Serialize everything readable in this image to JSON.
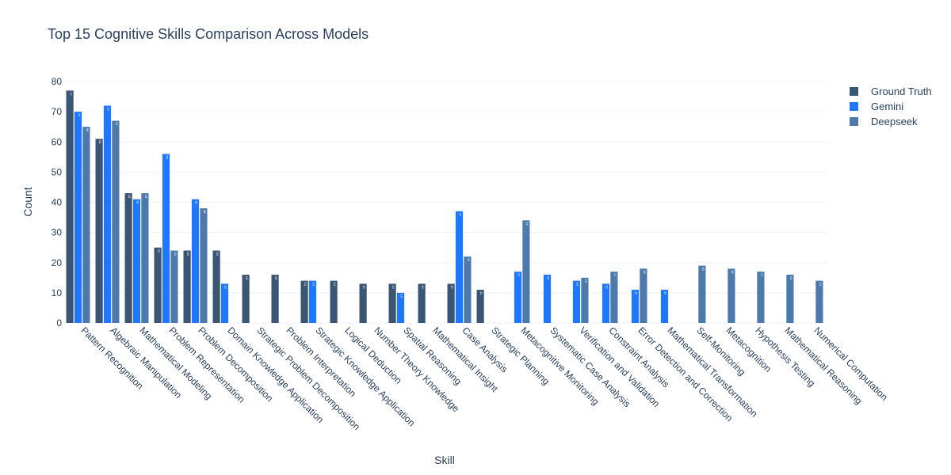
{
  "chart_data": {
    "type": "bar",
    "title": "Top 15 Cognitive Skills Comparison Across Models",
    "xlabel": "Skill",
    "ylabel": "Count",
    "ylim": [
      0,
      80
    ],
    "yticks": [
      0,
      10,
      20,
      30,
      40,
      50,
      60,
      70,
      80
    ],
    "grid": true,
    "legend_position": "top-right",
    "categories": [
      "Pattern Recognition",
      "Algebraic Manipulation",
      "Mathematical Modeling",
      "Problem Representation",
      "Problem Decomposition",
      "Domain Knowledge Application",
      "Strategic Problem Decomposition",
      "Problem Interpretation",
      "Strategic Knowledge Application",
      "Logical Deduction",
      "Number Theory Knowledge",
      "Spatial Reasoning",
      "Mathematical Insight",
      "Case Analysis",
      "Strategic Planning",
      "Metacognitive Monitoring",
      "Systematic Case Analysis",
      "Verification and Validation",
      "Constraint Analysis",
      "Error Detection and Correction",
      "Mathematical Transformation",
      "Self-Monitoring",
      "Metacognition",
      "Hypothesis Testing",
      "Mathematical Reasoning",
      "Numerical Computation"
    ],
    "series": [
      {
        "name": "Ground Truth",
        "color": "#3b5675",
        "values": [
          77,
          61,
          43,
          25,
          24,
          24,
          16,
          16,
          14,
          14,
          13,
          13,
          13,
          13,
          11,
          null,
          null,
          null,
          null,
          null,
          null,
          null,
          null,
          null,
          null,
          null
        ]
      },
      {
        "name": "Gemini",
        "color": "#1f77ff",
        "values": [
          70,
          72,
          41,
          56,
          41,
          13,
          null,
          null,
          14,
          null,
          null,
          10,
          null,
          37,
          null,
          17,
          16,
          14,
          13,
          11,
          11,
          null,
          null,
          null,
          null,
          null
        ]
      },
      {
        "name": "Deepseek",
        "color": "#4c7aad",
        "values": [
          65,
          67,
          43,
          24,
          38,
          null,
          null,
          null,
          null,
          null,
          null,
          null,
          null,
          22,
          null,
          34,
          null,
          15,
          17,
          18,
          null,
          19,
          18,
          17,
          16,
          14
        ]
      }
    ]
  }
}
